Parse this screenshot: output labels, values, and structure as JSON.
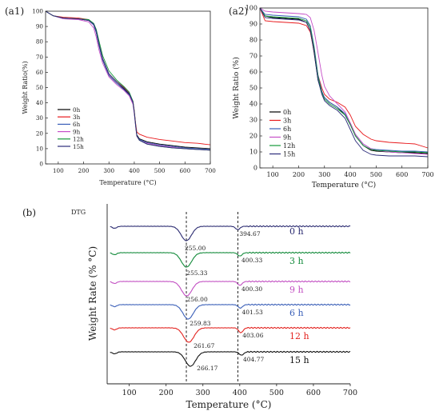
{
  "colors": {
    "0h": "#000000",
    "3h": "#e8191c",
    "6h": "#3a5fb8",
    "9h": "#c64fc8",
    "12h": "#159a3b",
    "15h": "#2c2c7a",
    "dtg_0h": "#2a2a70",
    "dtg_3h": "#128a3a",
    "dtg_9h": "#c24fc2",
    "dtg_6h": "#3a5fb8",
    "dtg_12h": "#e3231f",
    "dtg_15h": "#111111"
  },
  "chart_data": [
    {
      "panel_label": "(a1)",
      "type": "line",
      "xlabel": "Temperature (°C)",
      "ylabel": "Weight Ratio(%)",
      "xlim": [
        50,
        700
      ],
      "ylim": [
        0,
        100
      ],
      "xticks": [
        100,
        200,
        300,
        400,
        500,
        600,
        700
      ],
      "yticks": [
        0,
        10,
        20,
        30,
        40,
        50,
        60,
        70,
        80,
        90,
        100
      ],
      "legend_position": "lower-left",
      "series": [
        {
          "name": "0h",
          "color_key": "0h",
          "x": [
            50,
            80,
            120,
            180,
            220,
            240,
            250,
            260,
            275,
            300,
            330,
            360,
            380,
            395,
            400,
            405,
            410,
            420,
            450,
            500,
            550,
            600,
            650,
            700
          ],
          "y": [
            100,
            97,
            95.5,
            95,
            94,
            91,
            86,
            78,
            68,
            58,
            53,
            49,
            45.5,
            40,
            34,
            26,
            19,
            16.5,
            14.5,
            13,
            12,
            11,
            10.5,
            10
          ]
        },
        {
          "name": "3h",
          "color_key": "3h",
          "x": [
            50,
            80,
            120,
            180,
            220,
            240,
            250,
            260,
            275,
            300,
            330,
            360,
            380,
            395,
            400,
            405,
            410,
            420,
            450,
            500,
            550,
            600,
            650,
            700
          ],
          "y": [
            100,
            97,
            96,
            95.5,
            94.5,
            91.5,
            87,
            79,
            69,
            59,
            54,
            50,
            46.5,
            41,
            35,
            27,
            21,
            19.5,
            17.5,
            16,
            15,
            14,
            13.5,
            12.5
          ]
        },
        {
          "name": "6h",
          "color_key": "6h",
          "x": [
            50,
            80,
            120,
            180,
            220,
            240,
            250,
            260,
            275,
            300,
            330,
            360,
            380,
            395,
            400,
            405,
            410,
            420,
            450,
            500,
            550,
            600,
            650,
            700
          ],
          "y": [
            100,
            97,
            95.5,
            95,
            94,
            91,
            86,
            78,
            68,
            58,
            53,
            48.5,
            45,
            39.5,
            33.5,
            25.5,
            18.5,
            16,
            14,
            12.5,
            11.5,
            10.5,
            10,
            9.5
          ]
        },
        {
          "name": "9h",
          "color_key": "9h",
          "x": [
            50,
            80,
            120,
            180,
            220,
            240,
            250,
            260,
            275,
            300,
            330,
            360,
            380,
            395,
            400,
            405,
            410,
            420,
            450,
            500,
            550,
            600,
            650,
            700
          ],
          "y": [
            100,
            97,
            95,
            94.5,
            93,
            89,
            83,
            75,
            66,
            57,
            52,
            48,
            44.5,
            39,
            33,
            25,
            18,
            15.5,
            13.5,
            12,
            11,
            10,
            9.5,
            9
          ]
        },
        {
          "name": "12h",
          "color_key": "12h",
          "x": [
            50,
            80,
            120,
            180,
            220,
            240,
            250,
            260,
            275,
            300,
            330,
            360,
            380,
            395,
            400,
            405,
            410,
            420,
            450,
            500,
            550,
            600,
            650,
            700
          ],
          "y": [
            100,
            97,
            95.5,
            95,
            94.5,
            92,
            88,
            81,
            71,
            61,
            55,
            50.5,
            47,
            41,
            34.5,
            26,
            18.5,
            15.5,
            13,
            11.5,
            10.5,
            10,
            9.5,
            9
          ]
        },
        {
          "name": "15h",
          "color_key": "15h",
          "x": [
            50,
            80,
            120,
            180,
            220,
            240,
            250,
            260,
            275,
            300,
            330,
            360,
            380,
            395,
            400,
            405,
            410,
            420,
            450,
            500,
            550,
            600,
            650,
            700
          ],
          "y": [
            100,
            97,
            95.5,
            95,
            94,
            91.5,
            87,
            79,
            69,
            59,
            54,
            49.5,
            46,
            40.5,
            34,
            26,
            18.5,
            15.5,
            13,
            11.5,
            10.5,
            10,
            9.5,
            9
          ]
        }
      ]
    },
    {
      "panel_label": "(a2)",
      "type": "line",
      "xlabel": "Temperature (°C)",
      "ylabel": "Weight Ratio (%)",
      "xlim": [
        50,
        700
      ],
      "ylim": [
        0,
        100
      ],
      "xticks": [
        100,
        200,
        300,
        400,
        500,
        600,
        700
      ],
      "yticks": [
        0,
        10,
        20,
        30,
        40,
        50,
        60,
        70,
        80,
        90,
        100
      ],
      "legend_position": "lower-left",
      "series": [
        {
          "name": "0h",
          "color_key": "0h",
          "x": [
            50,
            70,
            100,
            150,
            200,
            230,
            245,
            260,
            275,
            290,
            300,
            320,
            350,
            380,
            400,
            420,
            450,
            480,
            500,
            550,
            600,
            650,
            700
          ],
          "y": [
            100,
            95,
            94,
            93.5,
            93,
            91,
            86,
            72,
            55,
            47,
            44,
            41,
            38,
            33,
            27,
            20,
            14,
            11,
            10.5,
            10,
            9.5,
            9.5,
            9
          ]
        },
        {
          "name": "3h",
          "color_key": "3h",
          "x": [
            50,
            70,
            100,
            150,
            200,
            230,
            245,
            260,
            275,
            290,
            300,
            320,
            350,
            380,
            400,
            420,
            450,
            480,
            500,
            550,
            600,
            650,
            700
          ],
          "y": [
            100,
            92,
            91.5,
            91,
            90.5,
            89,
            85,
            73,
            58,
            50,
            46,
            43,
            41,
            38,
            33,
            26,
            21,
            18,
            17,
            16,
            15.5,
            15,
            12.5
          ]
        },
        {
          "name": "6h",
          "color_key": "6h",
          "x": [
            50,
            70,
            100,
            150,
            200,
            230,
            245,
            260,
            275,
            290,
            300,
            320,
            350,
            380,
            400,
            420,
            450,
            480,
            500,
            550,
            600,
            650,
            700
          ],
          "y": [
            100,
            96,
            95.5,
            95,
            94.5,
            93,
            89,
            76,
            58,
            48,
            44,
            41,
            38,
            34,
            28,
            21,
            15,
            12,
            11.5,
            11,
            10.5,
            10.5,
            10
          ]
        },
        {
          "name": "9h",
          "color_key": "9h",
          "x": [
            50,
            70,
            100,
            150,
            200,
            230,
            245,
            260,
            275,
            290,
            300,
            320,
            350,
            380,
            400,
            420,
            450,
            480,
            500,
            550,
            600,
            650,
            700
          ],
          "y": [
            100,
            98,
            97.5,
            97,
            96.5,
            96,
            94,
            86,
            72,
            58,
            51,
            45,
            40,
            35,
            28,
            21,
            15,
            12,
            11,
            10,
            9.5,
            9,
            8.5
          ]
        },
        {
          "name": "12h",
          "color_key": "12h",
          "x": [
            50,
            70,
            100,
            150,
            200,
            230,
            245,
            260,
            275,
            290,
            300,
            320,
            350,
            380,
            400,
            420,
            450,
            480,
            500,
            550,
            600,
            650,
            700
          ],
          "y": [
            100,
            95,
            94.5,
            94,
            93.5,
            92,
            88,
            75,
            57,
            47,
            43,
            40,
            37,
            33,
            27,
            20,
            14,
            11.5,
            11,
            10.5,
            10,
            10,
            9.5
          ]
        },
        {
          "name": "15h",
          "color_key": "15h",
          "x": [
            50,
            70,
            100,
            150,
            200,
            230,
            245,
            260,
            275,
            290,
            300,
            320,
            350,
            380,
            400,
            420,
            450,
            480,
            500,
            550,
            600,
            650,
            700
          ],
          "y": [
            100,
            94,
            93.5,
            93,
            92.5,
            91,
            86,
            73,
            55,
            46,
            42,
            39,
            36,
            31,
            24,
            17,
            11,
            8.5,
            8,
            7.5,
            7.5,
            7.5,
            7
          ]
        }
      ]
    },
    {
      "panel_label": "(b)",
      "type": "line",
      "title": "DTG",
      "xlabel": "Temperature (°C)",
      "ylabel": "Weight Rate (% °C)",
      "xlim": [
        40,
        700
      ],
      "xticks": [
        100,
        200,
        300,
        400,
        500,
        600,
        700
      ],
      "reference_lines_x": [
        255,
        395
      ],
      "series": [
        {
          "name": "0 h",
          "color_key": "dtg_0h",
          "peak_labels": [
            "255.00",
            "394.67"
          ],
          "peaks": [
            255.0,
            394.67
          ],
          "depths": [
            1.0,
            0.35
          ]
        },
        {
          "name": "3 h",
          "color_key": "dtg_3h",
          "peak_labels": [
            "255.33",
            "400.33"
          ],
          "peaks": [
            255.33,
            400.33
          ],
          "depths": [
            1.0,
            0.35
          ]
        },
        {
          "name": "9 h",
          "color_key": "dtg_9h",
          "peak_labels": [
            "256.00",
            "400.30"
          ],
          "peaks": [
            256.0,
            400.3
          ],
          "depths": [
            1.0,
            0.4
          ]
        },
        {
          "name": "6 h",
          "color_key": "dtg_6h",
          "peak_labels": [
            "259.83",
            "401.53"
          ],
          "peaks": [
            259.83,
            401.53
          ],
          "depths": [
            1.0,
            0.35
          ]
        },
        {
          "name": "12 h",
          "color_key": "dtg_12h",
          "peak_labels": [
            "261.67",
            "403.06"
          ],
          "peaks": [
            261.67,
            403.06
          ],
          "depths": [
            1.0,
            0.5
          ]
        },
        {
          "name": "15 h",
          "color_key": "dtg_15h",
          "peak_labels": [
            "266.17",
            "404.77"
          ],
          "peaks": [
            266.17,
            404.77
          ],
          "depths": [
            1.0,
            0.35
          ]
        }
      ]
    }
  ]
}
